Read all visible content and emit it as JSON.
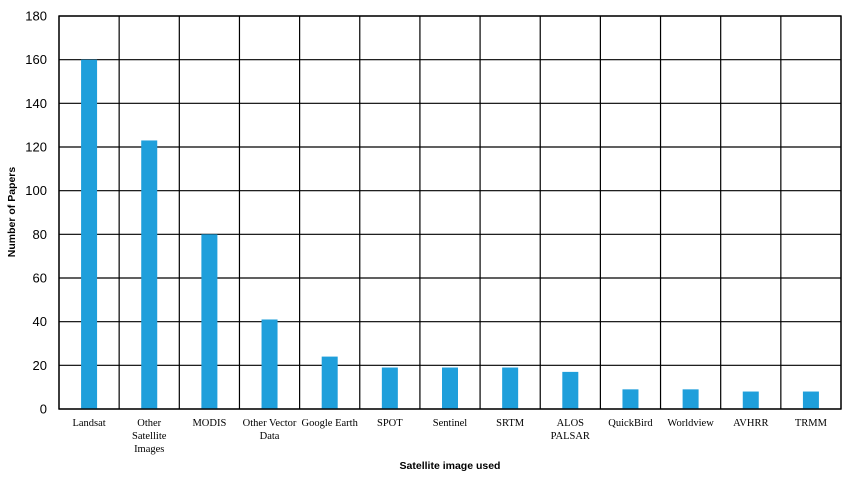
{
  "chart_data": {
    "type": "bar",
    "title": "",
    "xlabel": "Satellite image used",
    "ylabel": "Number of Papers",
    "ylim": [
      0,
      180
    ],
    "yticks": [
      0,
      20,
      40,
      60,
      80,
      100,
      120,
      140,
      160,
      180
    ],
    "grid": "both",
    "legend": "none",
    "bar_color": "#1f9fdb",
    "categories": [
      [
        "Landsat"
      ],
      [
        "Other",
        "Satellite",
        "Images"
      ],
      [
        "MODIS"
      ],
      [
        "Other Vector",
        "Data"
      ],
      [
        "Google Earth"
      ],
      [
        "SPOT"
      ],
      [
        "Sentinel"
      ],
      [
        "SRTM"
      ],
      [
        "ALOS",
        "PALSAR"
      ],
      [
        "QuickBird"
      ],
      [
        "Worldview"
      ],
      [
        "AVHRR"
      ],
      [
        "TRMM"
      ]
    ],
    "values": [
      160,
      123,
      80,
      41,
      24,
      19,
      19,
      19,
      17,
      9,
      9,
      8,
      8
    ]
  }
}
